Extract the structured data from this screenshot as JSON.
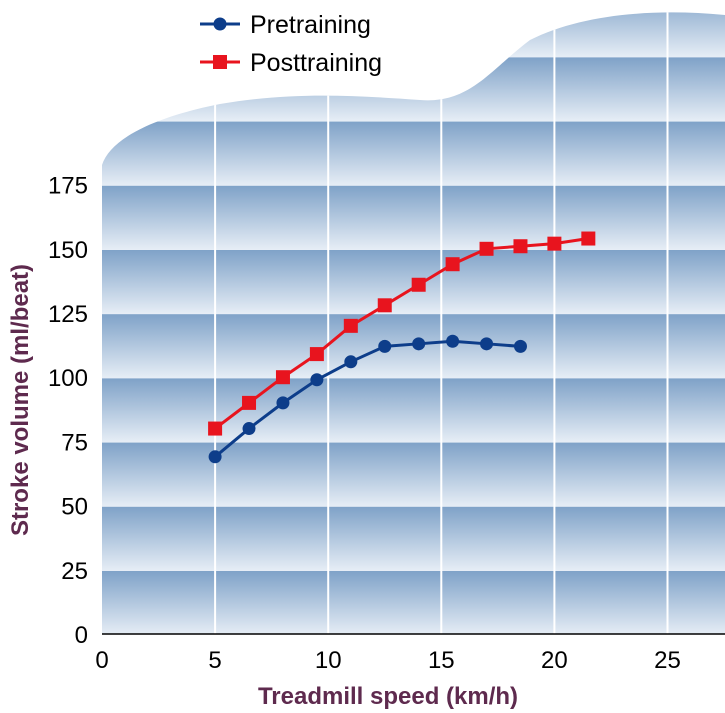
{
  "chart_data": {
    "type": "line",
    "title": "",
    "xlabel": "Treadmill speed (km/h)",
    "ylabel": "Stroke volume (ml/beat)",
    "xlim": [
      0,
      27
    ],
    "ylim": [
      0,
      175
    ],
    "xticks": [
      "0",
      "5",
      "10",
      "15",
      "20",
      "25"
    ],
    "yticks": [
      "0",
      "25",
      "50",
      "75",
      "100",
      "125",
      "150",
      "175"
    ],
    "grid": true,
    "legend_position": "top-left",
    "series": [
      {
        "name": "Pretraining",
        "color": "#0d3d8a",
        "marker": "circle",
        "x": [
          5,
          6.5,
          8,
          9.5,
          11,
          12.5,
          14,
          15.5,
          17,
          18.5
        ],
        "y": [
          69,
          80,
          90,
          99,
          106,
          112,
          113,
          114,
          113,
          112
        ]
      },
      {
        "name": "Posttraining",
        "color": "#e8141e",
        "marker": "square",
        "x": [
          5,
          6.5,
          8,
          9.5,
          11,
          12.5,
          14,
          15.5,
          17,
          18.5,
          20,
          21.5
        ],
        "y": [
          80,
          90,
          100,
          109,
          120,
          128,
          136,
          144,
          150,
          151,
          152,
          154
        ]
      }
    ]
  }
}
